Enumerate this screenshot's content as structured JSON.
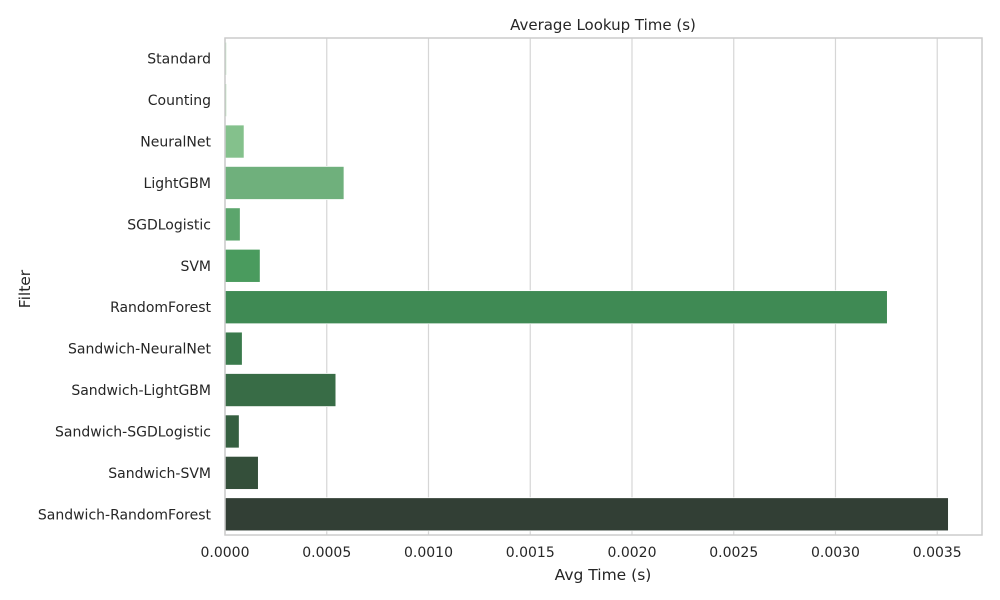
{
  "chart_data": {
    "type": "bar",
    "orientation": "horizontal",
    "title": "Average Lookup Time (s)",
    "xlabel": "Avg Time (s)",
    "ylabel": "Filter",
    "categories": [
      "Standard",
      "Counting",
      "NeuralNet",
      "LightGBM",
      "SGDLogistic",
      "SVM",
      "RandomForest",
      "Sandwich-NeuralNet",
      "Sandwich-LightGBM",
      "Sandwich-SGDLogistic",
      "Sandwich-SVM",
      "Sandwich-RandomForest"
    ],
    "values": [
      8e-06,
      8e-06,
      9.4e-05,
      0.000585,
      7.5e-05,
      0.000173,
      0.003255,
      8.5e-05,
      0.000545,
      7e-05,
      0.000164,
      0.003555
    ],
    "xlim": [
      0,
      0.00372
    ],
    "xticks": [
      0.0,
      0.0005,
      0.001,
      0.0015,
      0.002,
      0.0025,
      0.003,
      0.0035
    ],
    "xtick_labels": [
      "0.0000",
      "0.0005",
      "0.0010",
      "0.0015",
      "0.0020",
      "0.0025",
      "0.0030",
      "0.0035"
    ],
    "grid": "vertical",
    "bar_colors": [
      "#b5dcb8",
      "#a3d4a7",
      "#84c18c",
      "#6fb07c",
      "#5ba56c",
      "#4a9b5e",
      "#3f8a54",
      "#3a7a4c",
      "#386c46",
      "#355f40",
      "#344f3a",
      "#323f35"
    ],
    "grid_color": "#d6d6d6",
    "spine_color": "#cccccc"
  }
}
